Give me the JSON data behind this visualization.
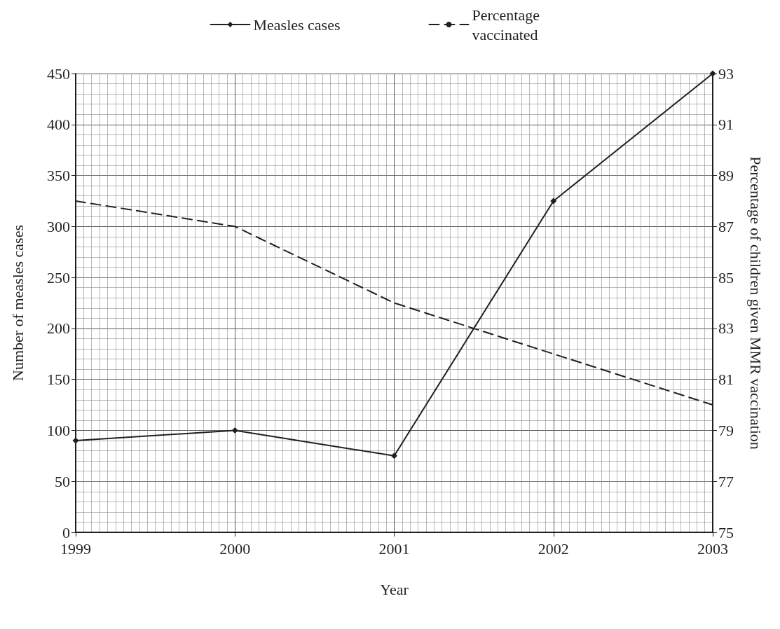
{
  "chart_data": {
    "type": "line",
    "xlabel": "Year",
    "ylabel": "Number of measles cases",
    "y2label": "Percentage of children given MMR vaccination",
    "x": [
      1999,
      2000,
      2001,
      2002,
      2003
    ],
    "series": [
      {
        "name": "Measles cases",
        "color": "#231f20",
        "values": [
          90,
          100,
          75,
          325,
          450
        ],
        "marker": "diamond",
        "line_style": "solid"
      },
      {
        "name": "Percentage vaccinated",
        "color": "#231f20",
        "values": [
          88,
          87,
          84,
          82,
          80
        ],
        "axis": "y2",
        "marker": "none",
        "line_style": "dashed"
      }
    ],
    "xlim": [
      1999,
      2003
    ],
    "xticks": [
      1999,
      2000,
      2001,
      2002,
      2003
    ],
    "ylim": [
      0,
      450
    ],
    "yticks": [
      0,
      50,
      100,
      150,
      200,
      250,
      300,
      350,
      400,
      450
    ],
    "y2lim": [
      75,
      93
    ],
    "y2ticks": [
      75,
      77,
      79,
      81,
      83,
      85,
      87,
      89,
      91,
      93
    ],
    "grid": true,
    "legend": "top"
  }
}
